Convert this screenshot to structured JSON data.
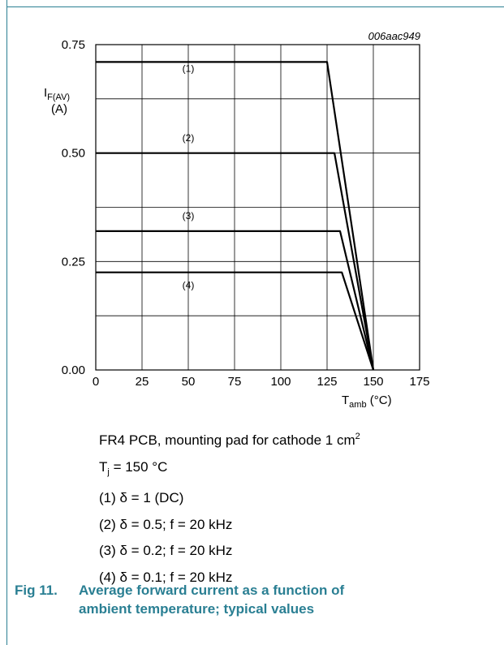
{
  "chart_data": {
    "type": "line",
    "figure_id": "006aac949",
    "xlabel": {
      "main": "T",
      "sub": "amb",
      "unit": " (°C)"
    },
    "ylabel": {
      "main": "I",
      "sub": "F(AV)",
      "unit": "(A)"
    },
    "xlim": [
      0,
      175
    ],
    "ylim": [
      0,
      0.75
    ],
    "x_ticks": [
      0,
      25,
      50,
      75,
      100,
      125,
      150,
      175
    ],
    "x_tick_labels": [
      "0",
      "25",
      "50",
      "75",
      "100",
      "125",
      "150",
      "175"
    ],
    "y_ticks": [
      0,
      0.25,
      0.5,
      0.75
    ],
    "y_tick_labels": [
      "0.00",
      "0.25",
      "0.50",
      "0.75"
    ],
    "grid": true,
    "series": [
      {
        "name": "(1)",
        "label_at": [
          50,
          0.695
        ],
        "points": [
          [
            0,
            0.71
          ],
          [
            125,
            0.71
          ],
          [
            150,
            0
          ]
        ]
      },
      {
        "name": "(2)",
        "label_at": [
          50,
          0.535
        ],
        "points": [
          [
            0,
            0.5
          ],
          [
            129,
            0.5
          ],
          [
            150,
            0
          ]
        ]
      },
      {
        "name": "(3)",
        "label_at": [
          50,
          0.355
        ],
        "points": [
          [
            0,
            0.32
          ],
          [
            132,
            0.32
          ],
          [
            150,
            0
          ]
        ]
      },
      {
        "name": "(4)",
        "label_at": [
          50,
          0.195
        ],
        "points": [
          [
            0,
            0.225
          ],
          [
            133,
            0.225
          ],
          [
            150,
            0
          ]
        ]
      }
    ]
  },
  "notes": {
    "line1_text": "FR4 PCB, mounting pad for cathode 1 cm",
    "line1_sup": "2",
    "line2_main": "T",
    "line2_sub": "j",
    "line2_rest": " = 150 °C",
    "line3": "(1) δ = 1 (DC)",
    "line4": "(2) δ = 0.5; f = 20 kHz",
    "line5": "(3) δ = 0.2; f = 20 kHz",
    "line6": "(4) δ = 0.1; f = 20 kHz"
  },
  "caption": {
    "number": "Fig 11.",
    "line1": "Average forward current as a function of",
    "line2": "ambient temperature; typical values"
  },
  "colors": {
    "frame": "#2a7f93",
    "caption": "#2a7f93",
    "plot_line": "#000000",
    "grid": "#000000"
  }
}
